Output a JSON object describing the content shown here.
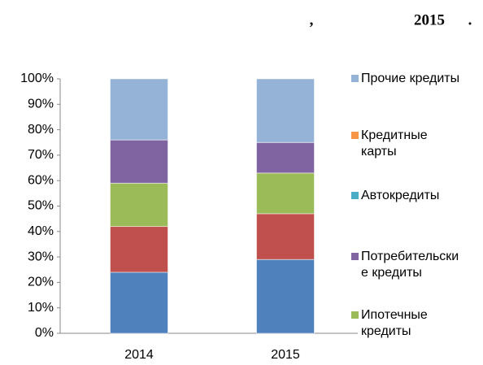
{
  "chart_data": {
    "type": "stacked_bar",
    "title_parts": [
      ",",
      "2015",
      "."
    ],
    "categories": [
      "2014",
      "2015"
    ],
    "series": [
      {
        "color": "#4f81bd",
        "values": [
          24,
          29
        ]
      },
      {
        "color": "#c0504d",
        "values": [
          18,
          18
        ]
      },
      {
        "name": "Ипотечные\nкредиты",
        "color": "#9bbb59",
        "values": [
          17,
          16
        ]
      },
      {
        "name": "Потребительски\nе кредиты",
        "color": "#8064a2",
        "values": [
          17,
          12
        ]
      },
      {
        "name": "Автокредиты",
        "color": "#4bacc6",
        "values": [
          0,
          0
        ]
      },
      {
        "name": "Кредитные\nкарты",
        "color": "#f79646",
        "values": [
          0,
          0
        ]
      },
      {
        "name": "Прочие кредиты",
        "color": "#95b3d7",
        "values": [
          24,
          25
        ]
      }
    ],
    "ylim": [
      0,
      100
    ],
    "yticks": [
      {
        "value": 0,
        "label": "0%"
      },
      {
        "value": 10,
        "label": "10%"
      },
      {
        "value": 20,
        "label": "20%"
      },
      {
        "value": 30,
        "label": "30%"
      },
      {
        "value": 40,
        "label": "40%"
      },
      {
        "value": 50,
        "label": "50%"
      },
      {
        "value": 60,
        "label": "60%"
      },
      {
        "value": 70,
        "label": "70%"
      },
      {
        "value": 80,
        "label": "80%"
      },
      {
        "value": 90,
        "label": "90%"
      },
      {
        "value": 100,
        "label": "100%"
      }
    ],
    "legend": "right"
  }
}
